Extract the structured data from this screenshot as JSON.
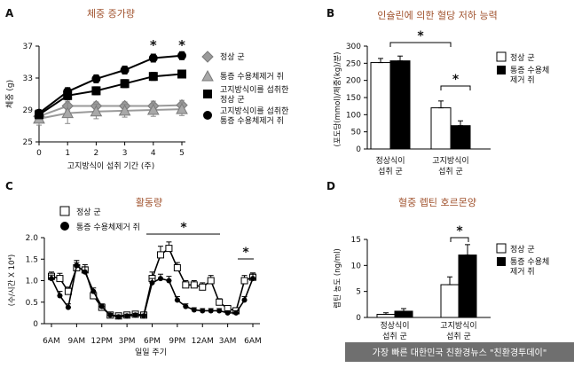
{
  "credit": "가장 빠른 대한민국 친환경뉴스 \"친환경투데이\"",
  "chart_data": [
    {
      "panel": "A",
      "type": "line",
      "title": "체중 증가량",
      "xlabel": "고지방식이 섭취 기간 (주)",
      "ylabel": "체중 (g)",
      "x": [
        0,
        1,
        2,
        3,
        4,
        5
      ],
      "ylim": [
        25,
        37
      ],
      "yticks": [
        25,
        29,
        33,
        37
      ],
      "xticks": [
        0,
        1,
        2,
        3,
        4,
        5
      ],
      "significance": [
        {
          "x": 4,
          "label": "*"
        },
        {
          "x": 5,
          "label": "*"
        }
      ],
      "series": [
        {
          "name": "정상 군",
          "marker": "diamond",
          "values": [
            28.2,
            29.5,
            29.5,
            29.5,
            29.5,
            29.6
          ],
          "err": [
            0.6,
            0.6,
            0.5,
            0.5,
            0.6,
            0.6
          ]
        },
        {
          "name": "통증 수용체제거 쥐",
          "marker": "triangle",
          "values": [
            27.9,
            28.6,
            28.8,
            28.9,
            29.0,
            29.1
          ],
          "err": [
            0.8,
            1.3,
            0.9,
            0.8,
            0.8,
            0.8
          ]
        },
        {
          "name": "고지방식이를 섭취한 정상 군",
          "marker": "square",
          "values": [
            28.4,
            30.8,
            31.4,
            32.3,
            33.2,
            33.5
          ],
          "err": [
            0.4,
            0.5,
            0.5,
            0.5,
            0.5,
            0.5
          ]
        },
        {
          "name": "고지방식이를 섭취한 통증 수용체제거 쥐",
          "marker": "circle",
          "values": [
            28.6,
            31.3,
            32.9,
            34.0,
            35.5,
            35.8
          ],
          "err": [
            0.4,
            0.5,
            0.5,
            0.5,
            0.5,
            0.5
          ]
        }
      ]
    },
    {
      "panel": "B",
      "type": "bar",
      "title": "인슐린에 의한 혈당 저하 능력",
      "ylabel": "(포도당(mmol)/체중(kg)/분)",
      "categories": [
        [
          "정상식이",
          "섭취 군"
        ],
        [
          "고지방식이",
          "섭취 군"
        ]
      ],
      "ylim": [
        0,
        300
      ],
      "yticks": [
        0,
        50,
        100,
        150,
        200,
        250,
        300
      ],
      "significance": [
        "*",
        "*"
      ],
      "series": [
        {
          "name": "정상 군",
          "values": [
            252,
            120
          ],
          "err": [
            12,
            20
          ]
        },
        {
          "name": "통증 수용체 제거 쥐",
          "values": [
            257,
            68
          ],
          "err": [
            14,
            14
          ]
        }
      ]
    },
    {
      "panel": "C",
      "type": "line",
      "title": "활동량",
      "xlabel": "일일 주기",
      "ylabel": "(수/시간 X 10⁴)",
      "xticks": [
        "6AM",
        "9AM",
        "12PM",
        "3PM",
        "6PM",
        "9PM",
        "12AM",
        "3AM",
        "6AM"
      ],
      "ylim": [
        0,
        2.0
      ],
      "yticks": [
        "0",
        "0.5",
        "1.0",
        "1.5",
        "2.0"
      ],
      "x": [
        0,
        1,
        2,
        3,
        4,
        5,
        6,
        7,
        8,
        9,
        10,
        11,
        12,
        13,
        14,
        15,
        16,
        17,
        18,
        19,
        20,
        21,
        22,
        23,
        24
      ],
      "significance": [
        "*",
        "*"
      ],
      "series": [
        {
          "name": "정상 군",
          "marker": "open-square",
          "values": [
            1.1,
            1.05,
            0.75,
            1.3,
            1.25,
            0.65,
            0.38,
            0.2,
            0.18,
            0.2,
            0.22,
            0.2,
            1.05,
            1.6,
            1.75,
            1.3,
            0.9,
            0.9,
            0.85,
            1.0,
            0.5,
            0.35,
            0.3,
            1.0,
            1.08
          ],
          "err": [
            0.1,
            0.12,
            0.1,
            0.12,
            0.12,
            0.08,
            0.06,
            0.04,
            0.04,
            0.04,
            0.04,
            0.04,
            0.15,
            0.2,
            0.15,
            0.12,
            0.1,
            0.1,
            0.1,
            0.12,
            0.08,
            0.06,
            0.06,
            0.12,
            0.1
          ]
        },
        {
          "name": "통증 수용체제거 쥐",
          "marker": "filled-circle",
          "values": [
            1.05,
            0.65,
            0.38,
            1.35,
            1.2,
            0.75,
            0.4,
            0.2,
            0.16,
            0.18,
            0.2,
            0.18,
            0.95,
            1.05,
            1.0,
            0.55,
            0.4,
            0.32,
            0.3,
            0.3,
            0.3,
            0.25,
            0.25,
            0.55,
            1.05
          ],
          "err": [
            0.08,
            0.1,
            0.08,
            0.12,
            0.12,
            0.08,
            0.06,
            0.04,
            0.04,
            0.04,
            0.04,
            0.04,
            0.1,
            0.1,
            0.1,
            0.08,
            0.06,
            0.05,
            0.05,
            0.05,
            0.05,
            0.05,
            0.05,
            0.08,
            0.1
          ]
        }
      ]
    },
    {
      "panel": "D",
      "type": "bar",
      "title": "혈중 렙틴 호르몬양",
      "ylabel": "렙틴 농도 (ng/ml)",
      "categories": [
        [
          "정상식이",
          "섭취 군"
        ],
        [
          "고지방식이",
          "섭취 군"
        ]
      ],
      "ylim": [
        0,
        15
      ],
      "yticks": [
        0,
        5,
        10,
        15
      ],
      "significance": [
        "*"
      ],
      "series": [
        {
          "name": "정상 군",
          "values": [
            0.6,
            6.3
          ],
          "err": [
            0.3,
            1.5
          ]
        },
        {
          "name": "통증 수용체 제거 쥐",
          "values": [
            1.2,
            12.0
          ],
          "err": [
            0.5,
            2.0
          ]
        }
      ]
    }
  ]
}
